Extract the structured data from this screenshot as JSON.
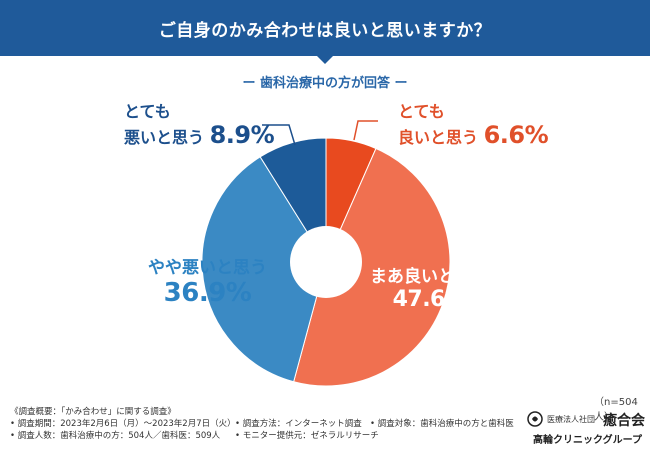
{
  "header": {
    "title": "ご自身のかみ合わせは良いと思いますか？"
  },
  "subtitle": "ー 歯科治療中の方が回答 ー",
  "chart_data": {
    "type": "pie",
    "title": "ご自身のかみ合わせは良いと思いますか？",
    "subtitle": "歯科治療中の方が回答",
    "donut": true,
    "slices": [
      {
        "label": "とても良いと思う",
        "value": 6.6,
        "color": "#e84a1f"
      },
      {
        "label": "まあ良いと思う",
        "value": 47.6,
        "color": "#f07050"
      },
      {
        "label": "やや悪いと思う",
        "value": 36.9,
        "color": "#3b8ac4"
      },
      {
        "label": "とても悪いと思う",
        "value": 8.9,
        "color": "#1d5b99"
      }
    ]
  },
  "labels": {
    "good_exact": {
      "line1": "とても",
      "line2": "良いと思う",
      "pct": "6.6%"
    },
    "good_rather": {
      "text": "まあ良いと思う",
      "pct": "47.6%"
    },
    "bad_rather": {
      "text": "やや悪いと思う",
      "pct": "36.9%"
    },
    "bad_exact": {
      "line1": "とても",
      "line2": "悪いと思う",
      "pct": "8.9%"
    }
  },
  "n_note": "（n=504人）",
  "footer": {
    "title": "《調査概要：「かみ合わせ」に関する調査》",
    "period": "• 調査期間：2023年2月6日（月）〜2023年2月7日（火）",
    "count": "• 調査人数：歯科治療中の方：504人／歯科医：509人",
    "method": "• 調査方法：インターネット調査",
    "provider": "• モニター提供元：ゼネラルリサーチ",
    "target": "• 調査対象：歯科治療中の方と歯科医"
  },
  "logo": {
    "corp": "医療法人社団",
    "name": "癒合会",
    "clinic": "高輪クリニックグループ"
  }
}
